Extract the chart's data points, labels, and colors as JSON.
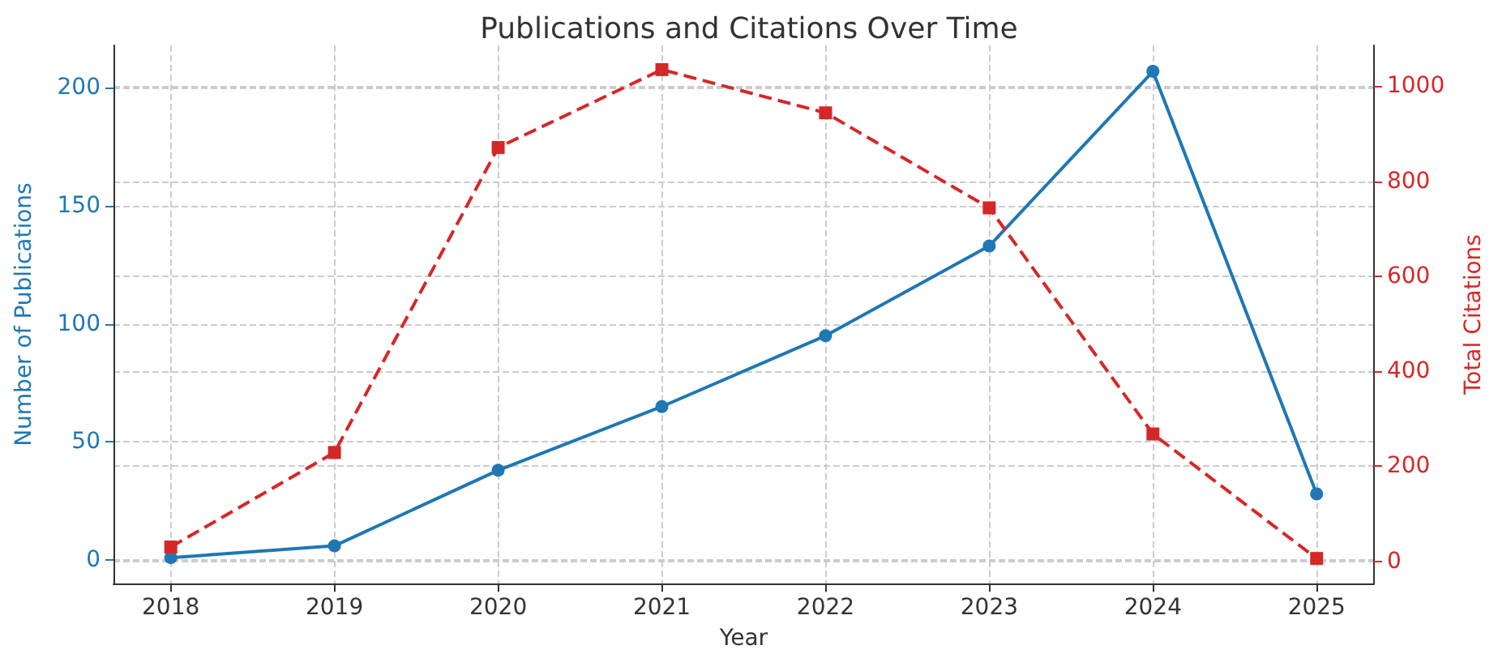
{
  "chart_data": {
    "type": "line",
    "title": "Publications and Citations Over Time",
    "xlabel": "Year",
    "ylabel": "Number of Publications",
    "y2label": "Total Citations",
    "categories": [
      "2018",
      "2019",
      "2020",
      "2021",
      "2022",
      "2023",
      "2024",
      "2025"
    ],
    "series": [
      {
        "color": "#1f77b4",
        "marker": "circle",
        "line_style": "solid",
        "values": [
          1,
          6,
          38,
          65,
          95,
          133,
          207,
          28
        ]
      },
      {
        "color": "#d62728",
        "marker": "square",
        "line_style": "dashed",
        "axis": "y2",
        "values": [
          30,
          229,
          871,
          1035,
          944,
          744,
          268,
          6
        ]
      }
    ],
    "ylim": [
      -10,
      218
    ],
    "yticks": [
      0,
      50,
      100,
      150,
      200
    ],
    "y2lim": [
      -47,
      1086
    ],
    "y2ticks": [
      0,
      200,
      400,
      600,
      800,
      1000
    ],
    "grid": true
  }
}
